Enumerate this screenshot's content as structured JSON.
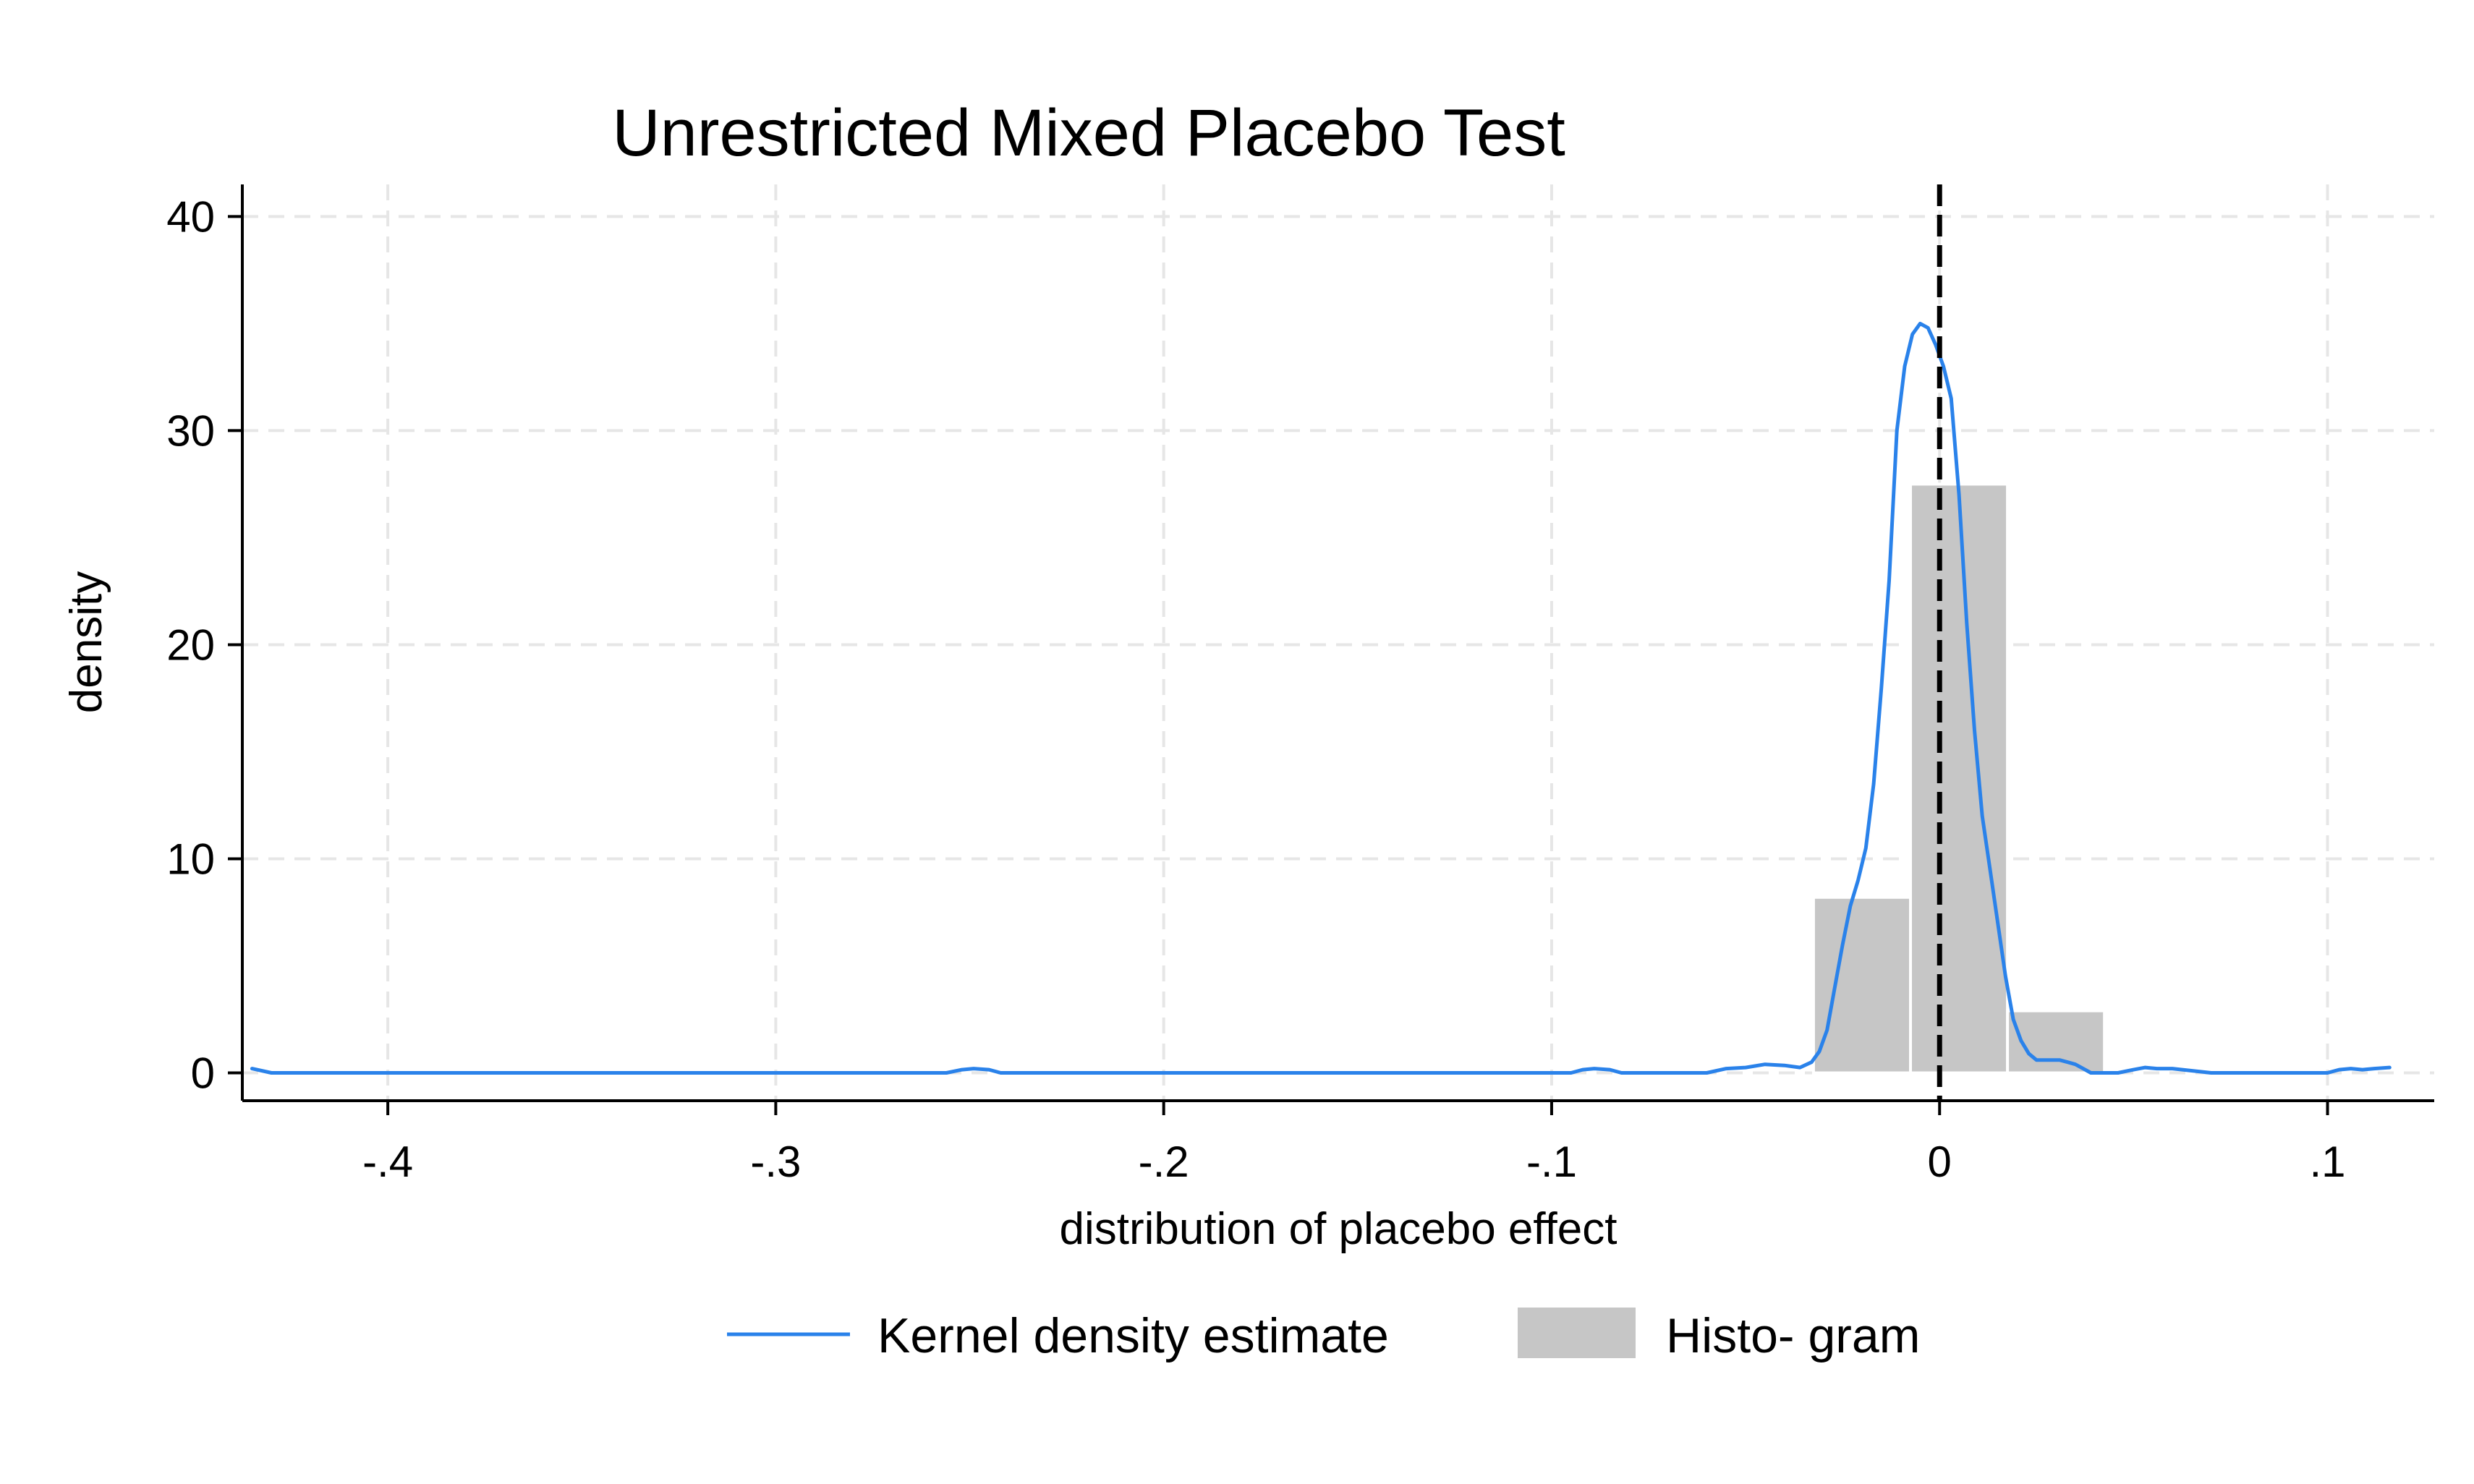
{
  "chart_data": {
    "type": "histogram",
    "title": "Unrestricted Mixed Placebo Test",
    "xlabel": "distribution of placebo effect",
    "ylabel": "density",
    "xlim": [
      -0.4375,
      0.1275
    ],
    "ylim": [
      -1.3,
      41.5
    ],
    "x_ticks": [
      -0.4,
      -0.3,
      -0.2,
      -0.1,
      0,
      0.1
    ],
    "x_tick_labels": [
      "-.4",
      "-.3",
      "-.2",
      "-.1",
      "0",
      ".1"
    ],
    "y_ticks": [
      0,
      10,
      20,
      30,
      40
    ],
    "y_tick_labels": [
      "0",
      "10",
      "20",
      "30",
      "40"
    ],
    "grid": true,
    "reference_line_x": 0,
    "histogram": {
      "name": "Histo- gram",
      "color": "#c6c6c6",
      "bins": [
        {
          "x0": -0.0325,
          "x1": -0.0075,
          "density": 8.2
        },
        {
          "x0": -0.0075,
          "x1": 0.0175,
          "density": 27.5
        },
        {
          "x0": 0.0175,
          "x1": 0.0425,
          "density": 2.9
        }
      ]
    },
    "kde": {
      "name": "Kernel density estimate",
      "color": "#2a82ea",
      "x": [
        -0.435,
        -0.43,
        -0.42,
        -0.3,
        -0.256,
        -0.252,
        -0.249,
        -0.245,
        -0.242,
        -0.2,
        -0.095,
        -0.092,
        -0.089,
        -0.085,
        -0.082,
        -0.06,
        -0.055,
        -0.05,
        -0.045,
        -0.04,
        -0.036,
        -0.033,
        -0.031,
        -0.029,
        -0.027,
        -0.025,
        -0.023,
        -0.021,
        -0.019,
        -0.017,
        -0.015,
        -0.013,
        -0.011,
        -0.009,
        -0.007,
        -0.005,
        -0.003,
        -0.001,
        0.0,
        0.001,
        0.003,
        0.005,
        0.007,
        0.009,
        0.011,
        0.013,
        0.015,
        0.017,
        0.019,
        0.021,
        0.023,
        0.025,
        0.027,
        0.029,
        0.031,
        0.033,
        0.035,
        0.037,
        0.039,
        0.041,
        0.043,
        0.046,
        0.05,
        0.053,
        0.056,
        0.06,
        0.07,
        0.1,
        0.103,
        0.106,
        0.109,
        0.112,
        0.116
      ],
      "y": [
        0.2,
        0.0,
        0.0,
        0.0,
        0.0,
        0.15,
        0.2,
        0.15,
        0.0,
        0.0,
        0.0,
        0.15,
        0.2,
        0.15,
        0.0,
        0.0,
        0.2,
        0.25,
        0.4,
        0.35,
        0.25,
        0.5,
        1.0,
        2.0,
        4.0,
        6.0,
        7.8,
        9.0,
        10.5,
        13.5,
        18.0,
        23.0,
        30.0,
        33.0,
        34.5,
        35.0,
        34.8,
        34.0,
        33.5,
        33.0,
        31.5,
        27.0,
        21.0,
        16.0,
        12.0,
        9.5,
        7.0,
        4.5,
        2.5,
        1.5,
        0.9,
        0.6,
        0.6,
        0.6,
        0.6,
        0.5,
        0.4,
        0.2,
        0.0,
        0.0,
        0.0,
        0.0,
        0.15,
        0.25,
        0.2,
        0.2,
        0.0,
        0.0,
        0.15,
        0.2,
        0.15,
        0.2,
        0.25
      ]
    },
    "legend": {
      "position": "bottom",
      "entries": [
        "Kernel density estimate",
        "Histo- gram"
      ]
    }
  }
}
